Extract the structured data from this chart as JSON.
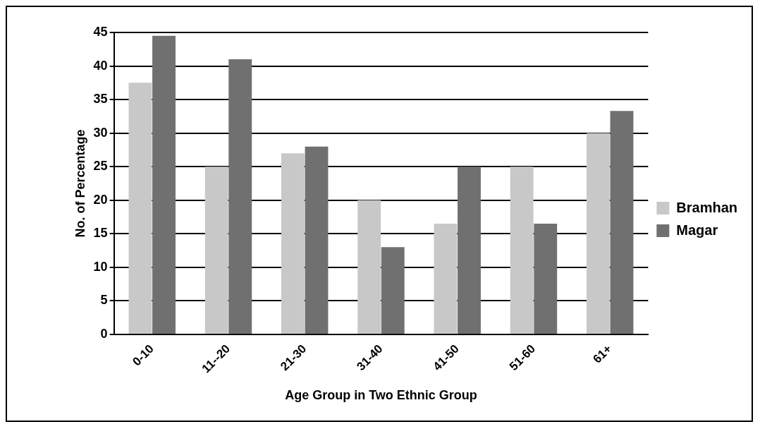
{
  "chart_data": {
    "type": "bar",
    "xlabel": "Age Group in Two Ethnic Group",
    "ylabel": "No. of Percentage",
    "categories": [
      "0-10",
      "11--20",
      "21-30",
      "31-40",
      "41-50",
      "51-60",
      "61+"
    ],
    "series": [
      {
        "name": "Bramhan",
        "color": "#c8c8c8",
        "values": [
          37.5,
          25,
          27,
          20,
          16.5,
          25,
          30
        ]
      },
      {
        "name": "Magar",
        "color": "#707070",
        "values": [
          44.5,
          41,
          28,
          13,
          25,
          16.5,
          33.3
        ]
      }
    ],
    "ylim": [
      0,
      45
    ],
    "yticks": [
      0,
      5,
      10,
      15,
      20,
      25,
      30,
      35,
      40,
      45
    ],
    "grid": "y",
    "legend": "right"
  }
}
